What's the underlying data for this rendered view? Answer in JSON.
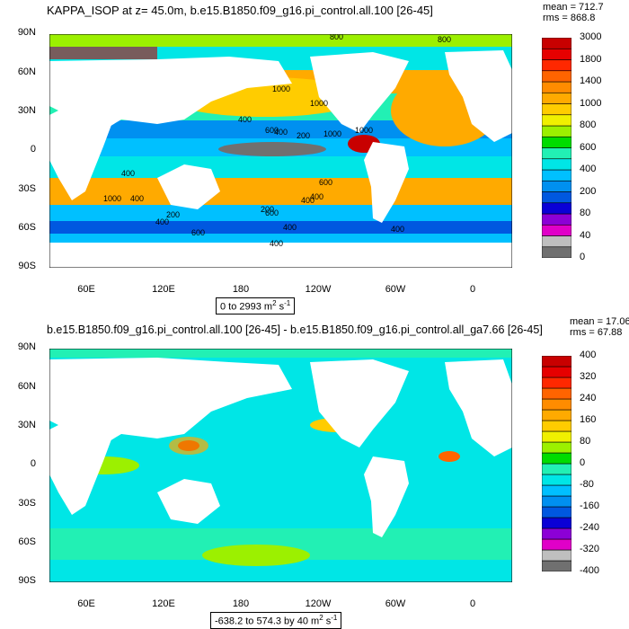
{
  "colors": {
    "top_palette": [
      "#707070",
      "#bfbfbf",
      "#e000c8",
      "#8c00d6",
      "#0a00d6",
      "#0058e0",
      "#0090f0",
      "#00c0ff",
      "#00e6e6",
      "#22f0b4",
      "#00dc00",
      "#9cf000",
      "#f0f000",
      "#ffcc00",
      "#ffaa00",
      "#ff8c00",
      "#ff6400",
      "#ff2800",
      "#e60000",
      "#c80000"
    ],
    "bottom_palette": [
      "#707070",
      "#bfbfbf",
      "#e000c8",
      "#8c00d6",
      "#0a00d6",
      "#0058e0",
      "#0090f0",
      "#00c0ff",
      "#00e6e6",
      "#22f0b4",
      "#00dc00",
      "#9cf000",
      "#f0f000",
      "#ffcc00",
      "#ffaa00",
      "#ff8c00",
      "#ff6400",
      "#ff2800",
      "#e60000",
      "#c80000"
    ],
    "land": "#ffffff"
  },
  "chart_data": [
    {
      "type": "heatmap",
      "title": "KAPPA_ISOP at z=  45.0m, b.e15.B1850.f09_g16.pi_control.all.100 [26-45]",
      "stats": {
        "mean": "mean = 712.7",
        "rms": "rms = 868.8"
      },
      "y_ticks": [
        "90N",
        "60N",
        "30N",
        "0",
        "30S",
        "60S",
        "90S"
      ],
      "x_ticks": [
        "60E",
        "120E",
        "180",
        "120W",
        "60W",
        "0"
      ],
      "contour_labels": [
        "800",
        "800",
        "1000",
        "1000",
        "400",
        "400",
        "1000",
        "200",
        "1000",
        "600",
        "600",
        "400",
        "1000",
        "400",
        "400",
        "200",
        "400",
        "600",
        "200",
        "400",
        "600",
        "400",
        "400",
        "400"
      ],
      "range_label": "0 to 2993 m",
      "unit_superscript_1": "2",
      "unit_suffix": " s",
      "unit_superscript_2": "-1",
      "colorbar_labels": [
        "3000",
        "1800",
        "1400",
        "1000",
        "800",
        "600",
        "400",
        "200",
        "80",
        "40",
        "0"
      ]
    },
    {
      "type": "heatmap",
      "title": "b.e15.B1850.f09_g16.pi_control.all.100 [26-45] - b.e15.B1850.f09_g16.pi_control.all_ga7.66 [26-45]",
      "stats": {
        "mean": "mean = 17.06",
        "rms": "rms = 67.88"
      },
      "y_ticks": [
        "90N",
        "60N",
        "30N",
        "0",
        "30S",
        "60S",
        "90S"
      ],
      "x_ticks": [
        "60E",
        "120E",
        "180",
        "120W",
        "60W",
        "0"
      ],
      "range_label": "-638.2 to 574.3 by 40 m",
      "unit_superscript_1": "2",
      "unit_suffix": " s",
      "unit_superscript_2": "-1",
      "colorbar_labels": [
        "400",
        "320",
        "240",
        "160",
        "80",
        "0",
        "-80",
        "-160",
        "-240",
        "-320",
        "-400"
      ]
    }
  ]
}
